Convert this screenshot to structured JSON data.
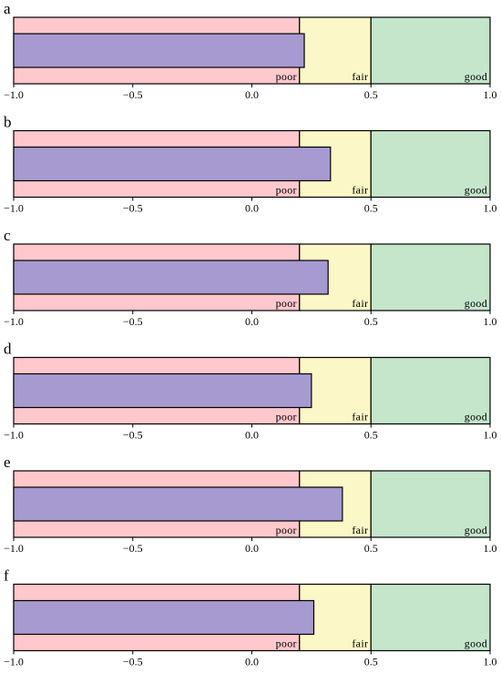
{
  "chart_data": [
    {
      "type": "bar",
      "panel_label": "a",
      "value": 0.22,
      "xlim": [
        -1.0,
        1.0
      ],
      "xticks": [
        "-1.0",
        "-0.5",
        "0.0",
        "0.5",
        "1.0"
      ],
      "bands": [
        {
          "label": "poor",
          "from": -1.0,
          "to": 0.2,
          "color": "#ffc8cc"
        },
        {
          "label": "fair",
          "from": 0.2,
          "to": 0.5,
          "color": "#fbf7c6"
        },
        {
          "label": "good",
          "from": 0.5,
          "to": 1.0,
          "color": "#c5e6cb"
        }
      ],
      "bar_color": "#a79ad0"
    },
    {
      "type": "bar",
      "panel_label": "b",
      "value": 0.33,
      "xlim": [
        -1.0,
        1.0
      ],
      "xticks": [
        "-1.0",
        "-0.5",
        "0.0",
        "0.5",
        "1.0"
      ],
      "bands": [
        {
          "label": "poor",
          "from": -1.0,
          "to": 0.2,
          "color": "#ffc8cc"
        },
        {
          "label": "fair",
          "from": 0.2,
          "to": 0.5,
          "color": "#fbf7c6"
        },
        {
          "label": "good",
          "from": 0.5,
          "to": 1.0,
          "color": "#c5e6cb"
        }
      ],
      "bar_color": "#a79ad0"
    },
    {
      "type": "bar",
      "panel_label": "c",
      "value": 0.32,
      "xlim": [
        -1.0,
        1.0
      ],
      "xticks": [
        "-1.0",
        "-0.5",
        "0.0",
        "0.5",
        "1.0"
      ],
      "bands": [
        {
          "label": "poor",
          "from": -1.0,
          "to": 0.2,
          "color": "#ffc8cc"
        },
        {
          "label": "fair",
          "from": 0.2,
          "to": 0.5,
          "color": "#fbf7c6"
        },
        {
          "label": "good",
          "from": 0.5,
          "to": 1.0,
          "color": "#c5e6cb"
        }
      ],
      "bar_color": "#a79ad0"
    },
    {
      "type": "bar",
      "panel_label": "d",
      "value": 0.25,
      "xlim": [
        -1.0,
        1.0
      ],
      "xticks": [
        "-1.0",
        "-0.5",
        "0.0",
        "0.5",
        "1.0"
      ],
      "bands": [
        {
          "label": "poor",
          "from": -1.0,
          "to": 0.2,
          "color": "#ffc8cc"
        },
        {
          "label": "fair",
          "from": 0.2,
          "to": 0.5,
          "color": "#fbf7c6"
        },
        {
          "label": "good",
          "from": 0.5,
          "to": 1.0,
          "color": "#c5e6cb"
        }
      ],
      "bar_color": "#a79ad0"
    },
    {
      "type": "bar",
      "panel_label": "e",
      "value": 0.38,
      "xlim": [
        -1.0,
        1.0
      ],
      "xticks": [
        "-1.0",
        "-0.5",
        "0.0",
        "0.5",
        "1.0"
      ],
      "bands": [
        {
          "label": "poor",
          "from": -1.0,
          "to": 0.2,
          "color": "#ffc8cc"
        },
        {
          "label": "fair",
          "from": 0.2,
          "to": 0.5,
          "color": "#fbf7c6"
        },
        {
          "label": "good",
          "from": 0.5,
          "to": 1.0,
          "color": "#c5e6cb"
        }
      ],
      "bar_color": "#a79ad0"
    },
    {
      "type": "bar",
      "panel_label": "f",
      "value": 0.26,
      "xlim": [
        -1.0,
        1.0
      ],
      "xticks": [
        "-1.0",
        "-0.5",
        "0.0",
        "0.5",
        "1.0"
      ],
      "bands": [
        {
          "label": "poor",
          "from": -1.0,
          "to": 0.2,
          "color": "#ffc8cc"
        },
        {
          "label": "fair",
          "from": 0.2,
          "to": 0.5,
          "color": "#fbf7c6"
        },
        {
          "label": "good",
          "from": 0.5,
          "to": 1.0,
          "color": "#c5e6cb"
        }
      ],
      "bar_color": "#a79ad0"
    }
  ]
}
